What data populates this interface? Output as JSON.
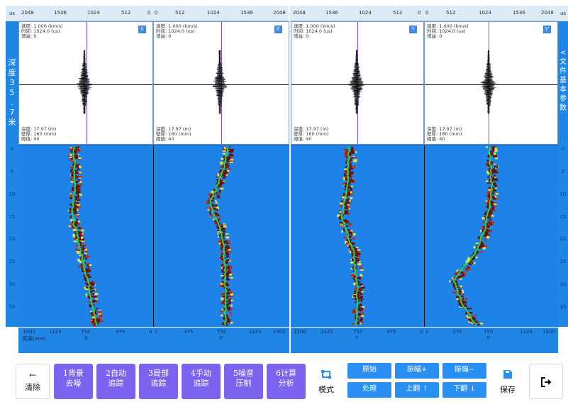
{
  "scale_top": {
    "unit": "us",
    "left_labels": [
      "2048",
      "1536",
      "1024",
      "512",
      "0"
    ],
    "right_labels": [
      "0",
      "512",
      "1024",
      "1536",
      "2048"
    ]
  },
  "left_sidebar": {
    "text": "深度35.7米"
  },
  "right_sidebar": {
    "text": "<文件基本参数"
  },
  "depth_ticks": [
    "0",
    "5",
    "10",
    "15",
    "20",
    "25",
    "30",
    "35"
  ],
  "wave_panels": [
    {
      "label": "X",
      "lines_top": [
        "速度: 1.000 (km/s)",
        "时间: 1024.0 (us)",
        "增益: 0"
      ],
      "lines_bottom": [
        "深度: 17.97 (m)",
        "壁厚: 160 (mm)",
        "阈值: 40"
      ]
    },
    {
      "label": "X'",
      "lines_top": [
        "速度: 1.000 (km/s)",
        "时间: 1024.0 (us)",
        "增益: 0"
      ],
      "lines_bottom": [
        "深度: 17.97 (m)",
        "壁厚: 160 (mm)",
        "阈值: 40"
      ]
    },
    {
      "label": "Y",
      "lines_top": [
        "速度: 1.000 (km/s)",
        "时间: 1024.0 (us)",
        "增益: 0"
      ],
      "lines_bottom": [
        "深度: 17.97 (m)",
        "壁厚: 160 (mm)",
        "阈值: 40"
      ]
    },
    {
      "label": "Y'",
      "lines_top": [
        "速度: 1.000 (km/s)",
        "时间: 1024.0 (us)",
        "增益: 0"
      ],
      "lines_bottom": [
        "深度: 17.97 (m)",
        "壁厚: 160 (mm)",
        "阈值: 40"
      ]
    }
  ],
  "distance_axis": {
    "left_labels": [
      "1500",
      "1125",
      "750",
      "375",
      "0"
    ],
    "right_labels": [
      "0",
      "375",
      "750",
      "1125",
      "1500"
    ],
    "name": "距离(mm)",
    "direction_labels": [
      "X",
      "X'",
      "Y",
      "Y'"
    ]
  },
  "toolbar": {
    "clear": {
      "arrow": "←",
      "label": "清除"
    },
    "steps": [
      {
        "line1": "1背景",
        "line2": "去噪"
      },
      {
        "line1": "2自动",
        "line2": "追踪"
      },
      {
        "line1": "3局部",
        "line2": "追踪"
      },
      {
        "line1": "4手动",
        "line2": "追踪"
      },
      {
        "line1": "5噪音",
        "line2": "压制"
      },
      {
        "line1": "6计算",
        "line2": "分析"
      }
    ],
    "mode_label": "模式",
    "original": "原始",
    "process": "处理",
    "amp_up": "振幅+",
    "amp_down": "振幅−",
    "page_up": "上翻 ↑",
    "page_down": "下翻 ↓",
    "save_label": "保存"
  },
  "colors": {
    "accent_blue": "#1f86e6",
    "button_purple": "#7b63f0",
    "button_blue": "#2a8ff3",
    "trace_green": "#33d633",
    "trace_dark": "#6b0f06",
    "trace_yellow": "#e4e04a"
  }
}
